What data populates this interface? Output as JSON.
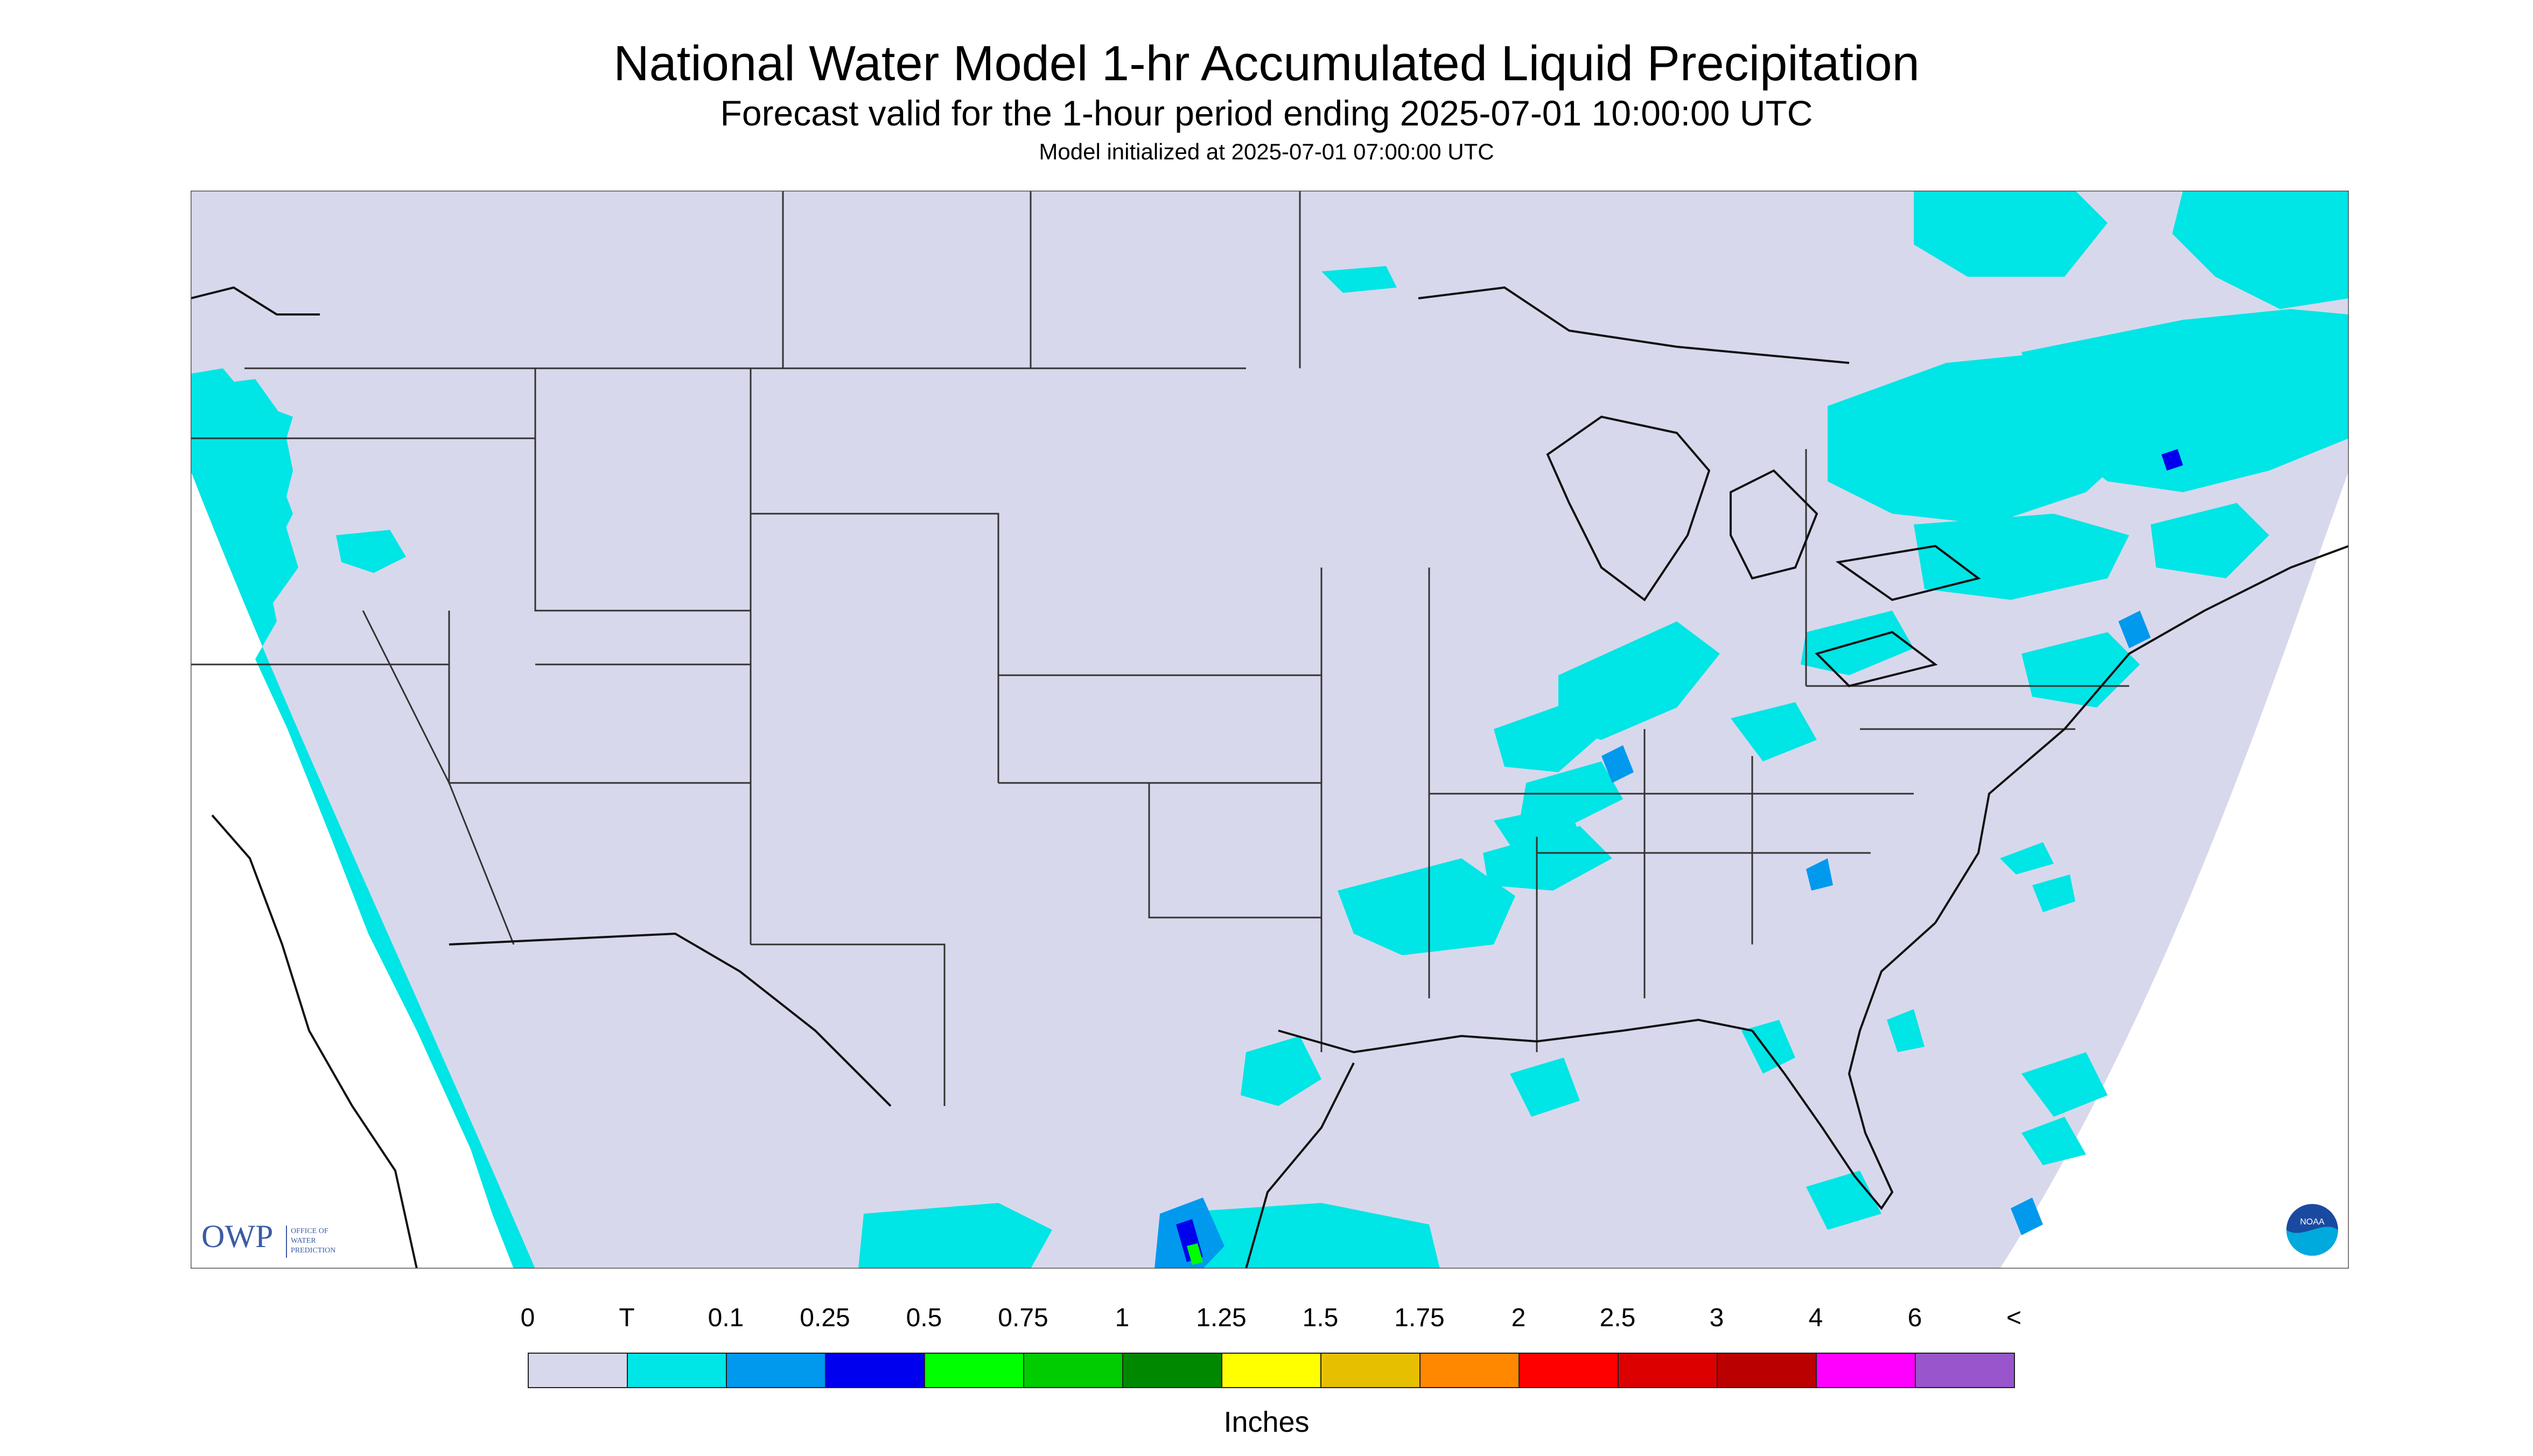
{
  "title": "National Water Model 1-hr Accumulated Liquid Precipitation",
  "subtitle": "Forecast valid for the 1-hour period ending 2025-07-01 10:00:00 UTC",
  "init_line": "Model initialized at 2025-07-01 07:00:00 UTC",
  "logo_owp": {
    "abbr": "OWP",
    "text_lines": [
      "OFFICE OF",
      "WATER",
      "PREDICTION"
    ]
  },
  "logo_noaa": "NOAA",
  "legend": {
    "labels": [
      "0",
      "T",
      "0.1",
      "0.25",
      "0.5",
      "0.75",
      "1",
      "1.25",
      "1.5",
      "1.75",
      "2",
      "2.5",
      "3",
      "4",
      "6",
      "<"
    ],
    "colors": [
      "#d8d8ec",
      "#00e5e5",
      "#0099ee",
      "#0000ee",
      "#00ff00",
      "#00cc00",
      "#008800",
      "#ffff00",
      "#e6c000",
      "#ff8800",
      "#ff0000",
      "#dd0000",
      "#bb0000",
      "#ff00ff",
      "#9955cc"
    ],
    "units": "Inches"
  },
  "colors": {
    "no_precip": "#d8d8ec",
    "trace": "#00e5e5",
    "light": "#0099ee",
    "moderate": "#0000ee"
  }
}
